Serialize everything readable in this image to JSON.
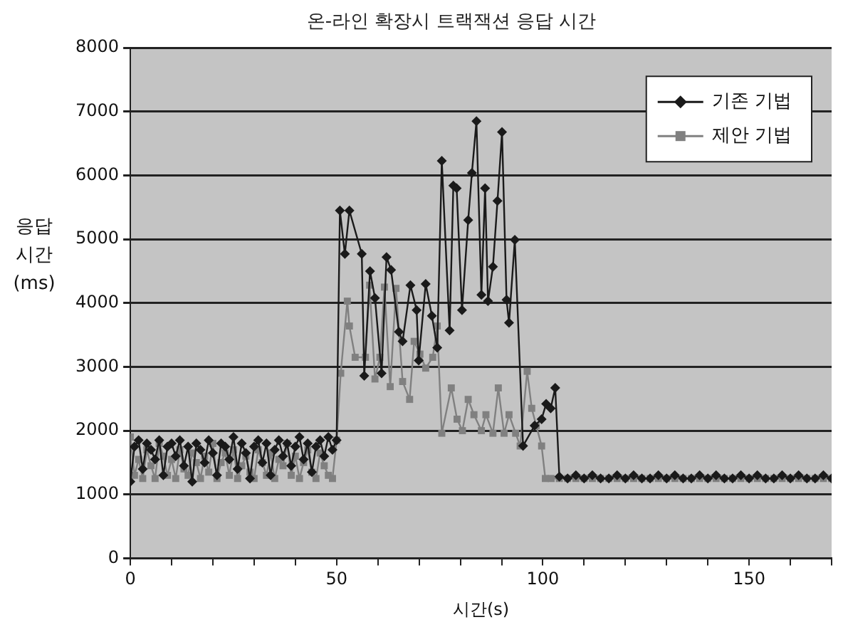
{
  "chart_data": {
    "type": "line",
    "title": "온-라인 확장시 트랙잭션 응답 시간",
    "xlabel": "시간(s)",
    "ylabel": "응답 시간 (ms)",
    "xlim": [
      0,
      170
    ],
    "xticks": [
      0,
      {
        "value": 10,
        "label": null
      },
      {
        "value": 20,
        "label": null
      },
      {
        "value": 30,
        "label": null
      },
      {
        "value": 40,
        "label": null
      },
      50,
      {
        "value": 60,
        "label": null
      },
      {
        "value": 70,
        "label": null
      },
      {
        "value": 80,
        "label": null
      },
      {
        "value": 90,
        "label": null
      },
      100,
      {
        "value": 110,
        "label": null
      },
      {
        "value": 120,
        "label": null
      },
      {
        "value": 130,
        "label": null
      },
      {
        "value": 140,
        "label": null
      },
      150,
      {
        "value": 160,
        "label": null
      },
      {
        "value": 170,
        "label": null
      }
    ],
    "ylim": [
      0,
      8000
    ],
    "yticks": [
      0,
      1000,
      2000,
      3000,
      4000,
      5000,
      6000,
      7000,
      8000
    ],
    "grid": "y",
    "legend": "top right",
    "series": [
      {
        "name": "기존 기법",
        "color": "#1a1a1a",
        "marker": "diamond",
        "x": [
          0,
          1,
          2,
          3,
          4,
          5,
          6,
          7,
          8,
          9,
          10,
          11,
          12,
          13,
          14,
          15,
          16,
          17,
          18,
          19,
          20,
          21,
          22,
          23,
          24,
          25,
          26,
          27,
          28,
          29,
          30,
          31,
          32,
          33,
          34,
          35,
          36,
          37,
          38,
          39,
          40,
          41,
          42,
          43,
          44,
          45,
          46,
          47,
          48,
          49,
          50,
          50.8,
          52,
          53.1,
          56.1,
          56.7,
          58.1,
          59.3,
          60.9,
          62.1,
          63.2,
          65.1,
          66,
          67.9,
          69.4,
          69.9,
          71.6,
          73.1,
          74.4,
          75.5,
          77.4,
          78.3,
          79.1,
          80.4,
          81.9,
          82.8,
          83.9,
          85.1,
          86,
          86.7,
          87.9,
          89,
          90.1,
          91.2,
          91.8,
          93.2,
          95.2,
          98,
          99.7,
          100.8,
          101.9,
          103,
          104,
          106,
          108,
          110,
          112,
          114,
          116,
          118,
          120,
          122,
          124,
          126,
          128,
          130,
          132,
          134,
          136,
          138,
          140,
          142,
          144,
          146,
          148,
          150,
          152,
          154,
          156,
          158,
          160,
          162,
          164,
          166,
          168,
          170
        ],
        "values": [
          1200,
          1750,
          1850,
          1400,
          1800,
          1700,
          1550,
          1850,
          1300,
          1750,
          1800,
          1600,
          1850,
          1450,
          1750,
          1200,
          1800,
          1700,
          1500,
          1850,
          1650,
          1300,
          1800,
          1750,
          1550,
          1900,
          1400,
          1800,
          1650,
          1250,
          1750,
          1850,
          1500,
          1800,
          1300,
          1700,
          1850,
          1600,
          1800,
          1450,
          1750,
          1900,
          1550,
          1800,
          1350,
          1750,
          1850,
          1600,
          1900,
          1700,
          1850,
          5450,
          4770,
          5450,
          4770,
          2860,
          4500,
          4080,
          2900,
          4720,
          4520,
          3550,
          3400,
          4280,
          3890,
          3100,
          4300,
          3800,
          3300,
          6230,
          3570,
          5840,
          5800,
          3890,
          5300,
          6040,
          6850,
          4130,
          5800,
          4030,
          4570,
          5600,
          6680,
          4050,
          3690,
          4990,
          1760,
          2080,
          2180,
          2420,
          2350,
          2670,
          1280,
          1250,
          1300,
          1250,
          1300,
          1250,
          1250,
          1300,
          1250,
          1300,
          1250,
          1250,
          1300,
          1250,
          1300,
          1250,
          1250,
          1300,
          1250,
          1300,
          1250,
          1250,
          1300,
          1250,
          1300,
          1250,
          1250,
          1300,
          1250,
          1300,
          1250,
          1250,
          1300,
          1250
        ]
      },
      {
        "name": "제안 기법",
        "color": "#808080",
        "marker": "square",
        "x": [
          0,
          1,
          2,
          3,
          4,
          5,
          6,
          7,
          8,
          9,
          10,
          11,
          12,
          13,
          14,
          15,
          16,
          17,
          18,
          19,
          20,
          21,
          22,
          23,
          24,
          25,
          26,
          27,
          28,
          29,
          30,
          31,
          32,
          33,
          34,
          35,
          36,
          37,
          38,
          39,
          40,
          41,
          42,
          43,
          44,
          45,
          46,
          47,
          48,
          49,
          50,
          51,
          52.6,
          53.1,
          54.5,
          57,
          58,
          59.3,
          60.5,
          61.6,
          63,
          64.4,
          66,
          67.7,
          68.8,
          70.2,
          71.6,
          73.3,
          74.4,
          75.5,
          77.8,
          79.2,
          80.5,
          81.9,
          83.3,
          85.1,
          86.2,
          87.9,
          89.2,
          90.6,
          91.8,
          93.4,
          94.5,
          96.2,
          97.3,
          98.4,
          99.7,
          100.6,
          102,
          104,
          106,
          108,
          110,
          112,
          114,
          116,
          118,
          120,
          122,
          124,
          126,
          128,
          130,
          132,
          134,
          136,
          138,
          140,
          142,
          144,
          146,
          148,
          150,
          152,
          154,
          156,
          158,
          160,
          162,
          164,
          166,
          168,
          170
        ],
        "values": [
          1900,
          1300,
          1550,
          1250,
          1700,
          1450,
          1250,
          1800,
          1600,
          1300,
          1550,
          1250,
          1700,
          1400,
          1300,
          1650,
          1500,
          1250,
          1600,
          1350,
          1800,
          1250,
          1500,
          1650,
          1300,
          1700,
          1250,
          1450,
          1600,
          1350,
          1250,
          1700,
          1500,
          1300,
          1650,
          1250,
          1550,
          1450,
          1800,
          1300,
          1600,
          1250,
          1500,
          1700,
          1350,
          1250,
          1650,
          1450,
          1300,
          1250,
          1850,
          2900,
          4030,
          3640,
          3150,
          3150,
          4280,
          2810,
          3150,
          4250,
          2690,
          4230,
          2770,
          2490,
          3400,
          3200,
          2980,
          3150,
          3640,
          1960,
          2670,
          2180,
          2000,
          2490,
          2250,
          2000,
          2250,
          1960,
          2670,
          1960,
          2250,
          1960,
          1760,
          2930,
          2350,
          2080,
          1760,
          1250,
          1250,
          1250,
          1250,
          1250,
          1250,
          1250,
          1250,
          1250,
          1250,
          1250,
          1250,
          1250,
          1250,
          1250,
          1250,
          1250,
          1250,
          1250,
          1250,
          1250,
          1250,
          1250,
          1250,
          1250,
          1250,
          1250,
          1250,
          1250,
          1250,
          1250,
          1250,
          1250,
          1250,
          1250,
          1250
        ]
      }
    ]
  }
}
